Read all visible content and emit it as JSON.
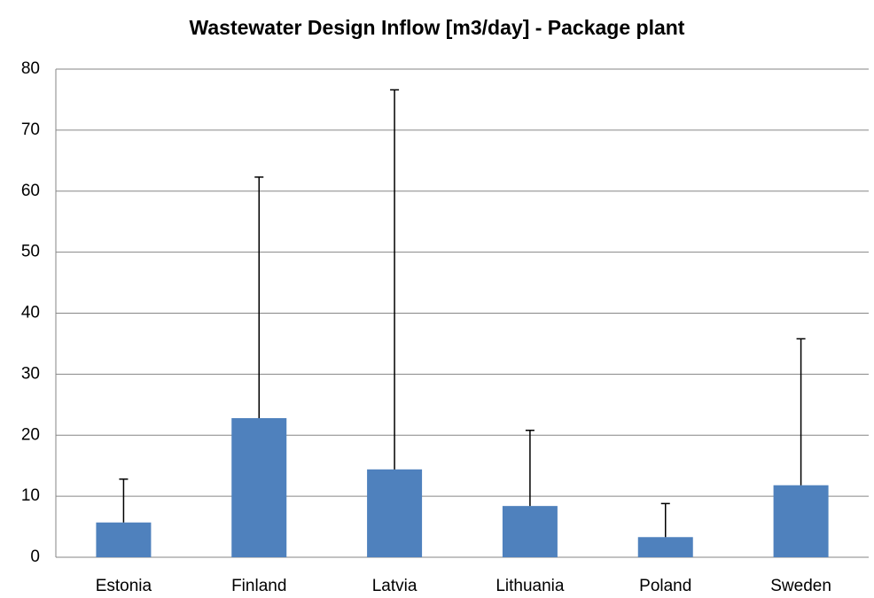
{
  "chart_data": {
    "type": "bar",
    "title": "Wastewater Design Inflow [m3/day] - Package plant",
    "categories": [
      "Estonia",
      "Finland",
      "Latvia",
      "Lithuania",
      "Poland",
      "Sweden"
    ],
    "values": [
      5.7,
      22.8,
      14.4,
      8.4,
      3.3,
      11.8
    ],
    "errors": [
      7.1,
      39.5,
      62.2,
      12.4,
      5.5,
      24.0
    ],
    "color": "#4f81bd",
    "ylim": [
      0,
      80
    ],
    "yticks": [
      0,
      10,
      20,
      30,
      40,
      50,
      60,
      70,
      80
    ],
    "grid": true
  }
}
